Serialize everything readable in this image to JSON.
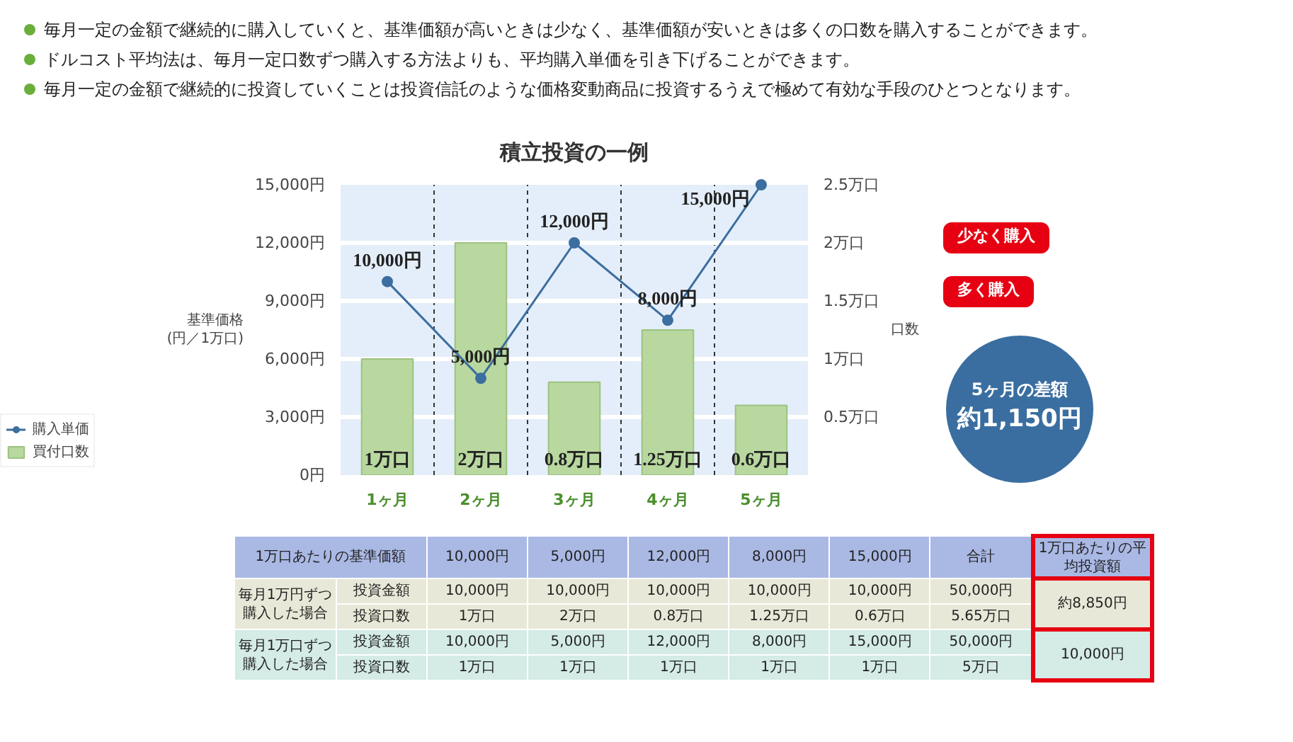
{
  "chart_data": [
    {
      "type": "bar",
      "title": "積立投資の一例",
      "ylabel": "基準価格\n(円／1万口)",
      "y2label": "口数",
      "categories": [
        "1ヶ月",
        "2ヶ月",
        "3ヶ月",
        "4ヶ月",
        "5ヶ月"
      ],
      "ylim": [
        0,
        15000
      ],
      "yticks": [
        {
          "value": 0,
          "label": "0円"
        },
        {
          "value": 3000,
          "label": "3,000円"
        },
        {
          "value": 6000,
          "label": "6,000円"
        },
        {
          "value": 9000,
          "label": "9,000円"
        },
        {
          "value": 12000,
          "label": "12,000円"
        },
        {
          "value": 15000,
          "label": "15,000円"
        }
      ],
      "y2lim": [
        0,
        2.5
      ],
      "y2ticks": [
        {
          "value": 0.5,
          "label": "0.5万口"
        },
        {
          "value": 1,
          "label": "1万口"
        },
        {
          "value": 1.5,
          "label": "1.5万口"
        },
        {
          "value": 2,
          "label": "2万口"
        },
        {
          "value": 2.5,
          "label": "2.5万口"
        }
      ],
      "series": [
        {
          "name": "購入単価",
          "type": "line",
          "color": "#3c6e9f",
          "values": [
            10000,
            5000,
            12000,
            8000,
            15000
          ],
          "value_labels": [
            "10,000円",
            "5,000円",
            "12,000円",
            "8,000円",
            "15,000円"
          ]
        },
        {
          "name": "買付口数",
          "axis": "y2",
          "color": "#b8d8a0",
          "values": [
            1,
            2,
            0.8,
            1.25,
            0.6
          ],
          "value_labels": [
            "1万口",
            "2万口",
            "0.8万口",
            "1.25万口",
            "0.6万口"
          ]
        }
      ],
      "grid": true,
      "legend": "bottom left",
      "marker": "circle",
      "annotations": [
        "少なく購入",
        "多く購入",
        "5ヶ月の差額",
        "約1,150円"
      ]
    },
    {
      "type": "other",
      "annotations": [
        "毎月一定の金額で継続的に購入していくと、基準価額が高いときは少なく、基準価額が安いときは多くの口数を購入することができます。",
        "ドルコスト平均法は、毎月一定口数ずつ購入する方法よりも、平均購入単価を引き下げることができます。",
        "毎月一定の金額で継続的に投資していくことは投資信託のような価格変動商品に投資するうえで極めて有効な手段のひとつとなります。",
        "1万口あたりの基準価額",
        "10,000円",
        "5,000円",
        "12,000円",
        "8,000円",
        "15,000円",
        "合計",
        "1万口あたりの平均投資額",
        "毎月1万円ずつ購入した場合",
        "投資金額",
        "10,000円",
        "10,000円",
        "10,000円",
        "10,000円",
        "10,000円",
        "50,000円",
        "約8,850円",
        "投資口数",
        "1万口",
        "2万口",
        "0.8万口",
        "1.25万口",
        "0.6万口",
        "5.65万口",
        "毎月1万口ずつ購入した場合",
        "投資金額",
        "10,000円",
        "5,000円",
        "12,000円",
        "8,000円",
        "15,000円",
        "50,000円",
        "10,000円",
        "投資口数",
        "1万口",
        "1万口",
        "1万口",
        "1万口",
        "1万口",
        "5万口"
      ]
    }
  ]
}
